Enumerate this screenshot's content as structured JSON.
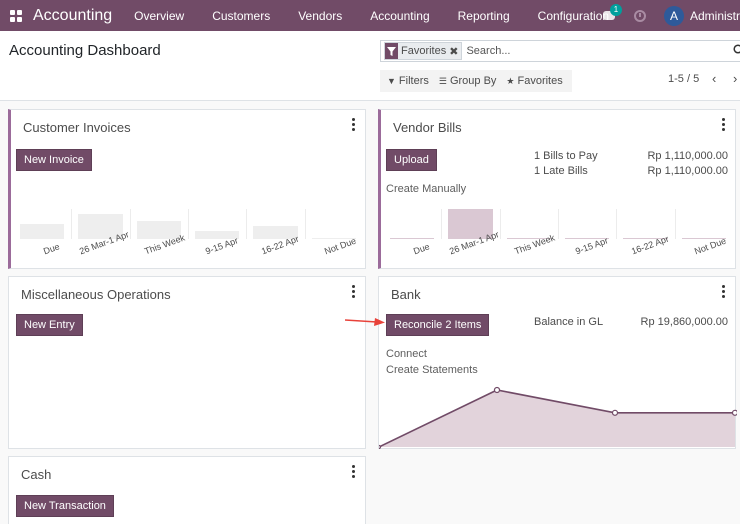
{
  "navbar": {
    "brand": "Accounting",
    "menu": [
      "Overview",
      "Customers",
      "Vendors",
      "Accounting",
      "Reporting",
      "Configuration"
    ],
    "chat_count": "1",
    "avatar_letter": "A",
    "user_name": "Administrator"
  },
  "control_panel": {
    "title": "Accounting Dashboard",
    "facet_label": "Favorites",
    "search_placeholder": "Search...",
    "filters_label": "Filters",
    "group_by_label": "Group By",
    "favorites_label": "Favorites",
    "pager": "1-5 / 5"
  },
  "cards": {
    "customer_invoices": {
      "title": "Customer Invoices",
      "button": "New Invoice",
      "graph_labels": [
        "Due",
        "26 Mar-1 Apr",
        "This Week",
        "9-15 Apr",
        "16-22 Apr",
        "Not Due"
      ],
      "bar_values": [
        0.5,
        0.85,
        0.6,
        0.28,
        0.42,
        0.03
      ],
      "bar_color": "#eeeeee"
    },
    "vendor_bills": {
      "title": "Vendor Bills",
      "button": "Upload",
      "create_manually": "Create Manually",
      "stats": [
        {
          "label": "1 Bills to Pay",
          "value": "Rp 1,110,000.00"
        },
        {
          "label": "1 Late Bills",
          "value": "Rp 1,110,000.00"
        }
      ],
      "graph_labels": [
        "Due",
        "26 Mar-1 Apr",
        "This Week",
        "9-15 Apr",
        "16-22 Apr",
        "Not Due"
      ],
      "bar_values": [
        0,
        1,
        0,
        0,
        0,
        0
      ],
      "bar_color": "#dac8d3"
    },
    "misc_operations": {
      "title": "Miscellaneous Operations",
      "button": "New Entry"
    },
    "bank": {
      "title": "Bank",
      "button": "Reconcile 2 Items",
      "balance_label": "Balance in GL",
      "balance_value": "Rp 19,860,000.00",
      "links": [
        "Connect",
        "Create Statements"
      ],
      "line_values": [
        0,
        1,
        0.6,
        0.6
      ],
      "line_color": "#714b67",
      "fill_color": "#e2d3db"
    },
    "cash": {
      "title": "Cash",
      "button": "New Transaction"
    }
  },
  "colors": {
    "primary": "#714b67",
    "annotation_arrow": "#e8423a"
  }
}
